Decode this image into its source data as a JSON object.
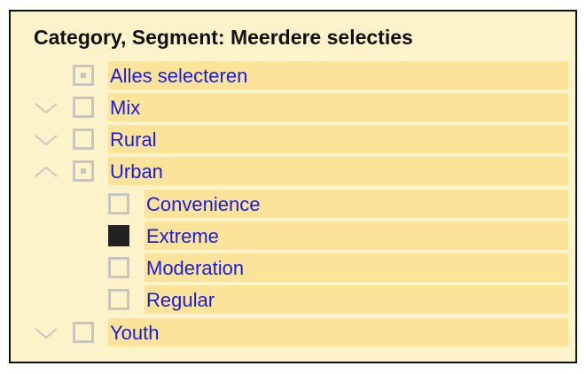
{
  "slicer": {
    "title": "Category, Segment: Meerdere selecties",
    "items": [
      {
        "label": "Alles selecteren",
        "level": 0,
        "state": "partial",
        "chevron": "none"
      },
      {
        "label": "Mix",
        "level": 0,
        "state": "unchecked",
        "chevron": "down"
      },
      {
        "label": "Rural",
        "level": 0,
        "state": "unchecked",
        "chevron": "down"
      },
      {
        "label": "Urban",
        "level": 0,
        "state": "partial",
        "chevron": "up"
      },
      {
        "label": "Convenience",
        "level": 1,
        "state": "unchecked",
        "chevron": "none"
      },
      {
        "label": "Extreme",
        "level": 1,
        "state": "checked",
        "chevron": "none"
      },
      {
        "label": "Moderation",
        "level": 1,
        "state": "unchecked",
        "chevron": "none"
      },
      {
        "label": "Regular",
        "level": 1,
        "state": "unchecked",
        "chevron": "none"
      },
      {
        "label": "Youth",
        "level": 0,
        "state": "unchecked",
        "chevron": "down"
      }
    ]
  },
  "colors": {
    "background": "#fdf3cb",
    "label_bar": "#fbe49a",
    "label_text": "#1a1ae6",
    "checkbox_border": "#c9c6be",
    "checkbox_checked": "#222222",
    "chevron": "#c9c6be"
  }
}
